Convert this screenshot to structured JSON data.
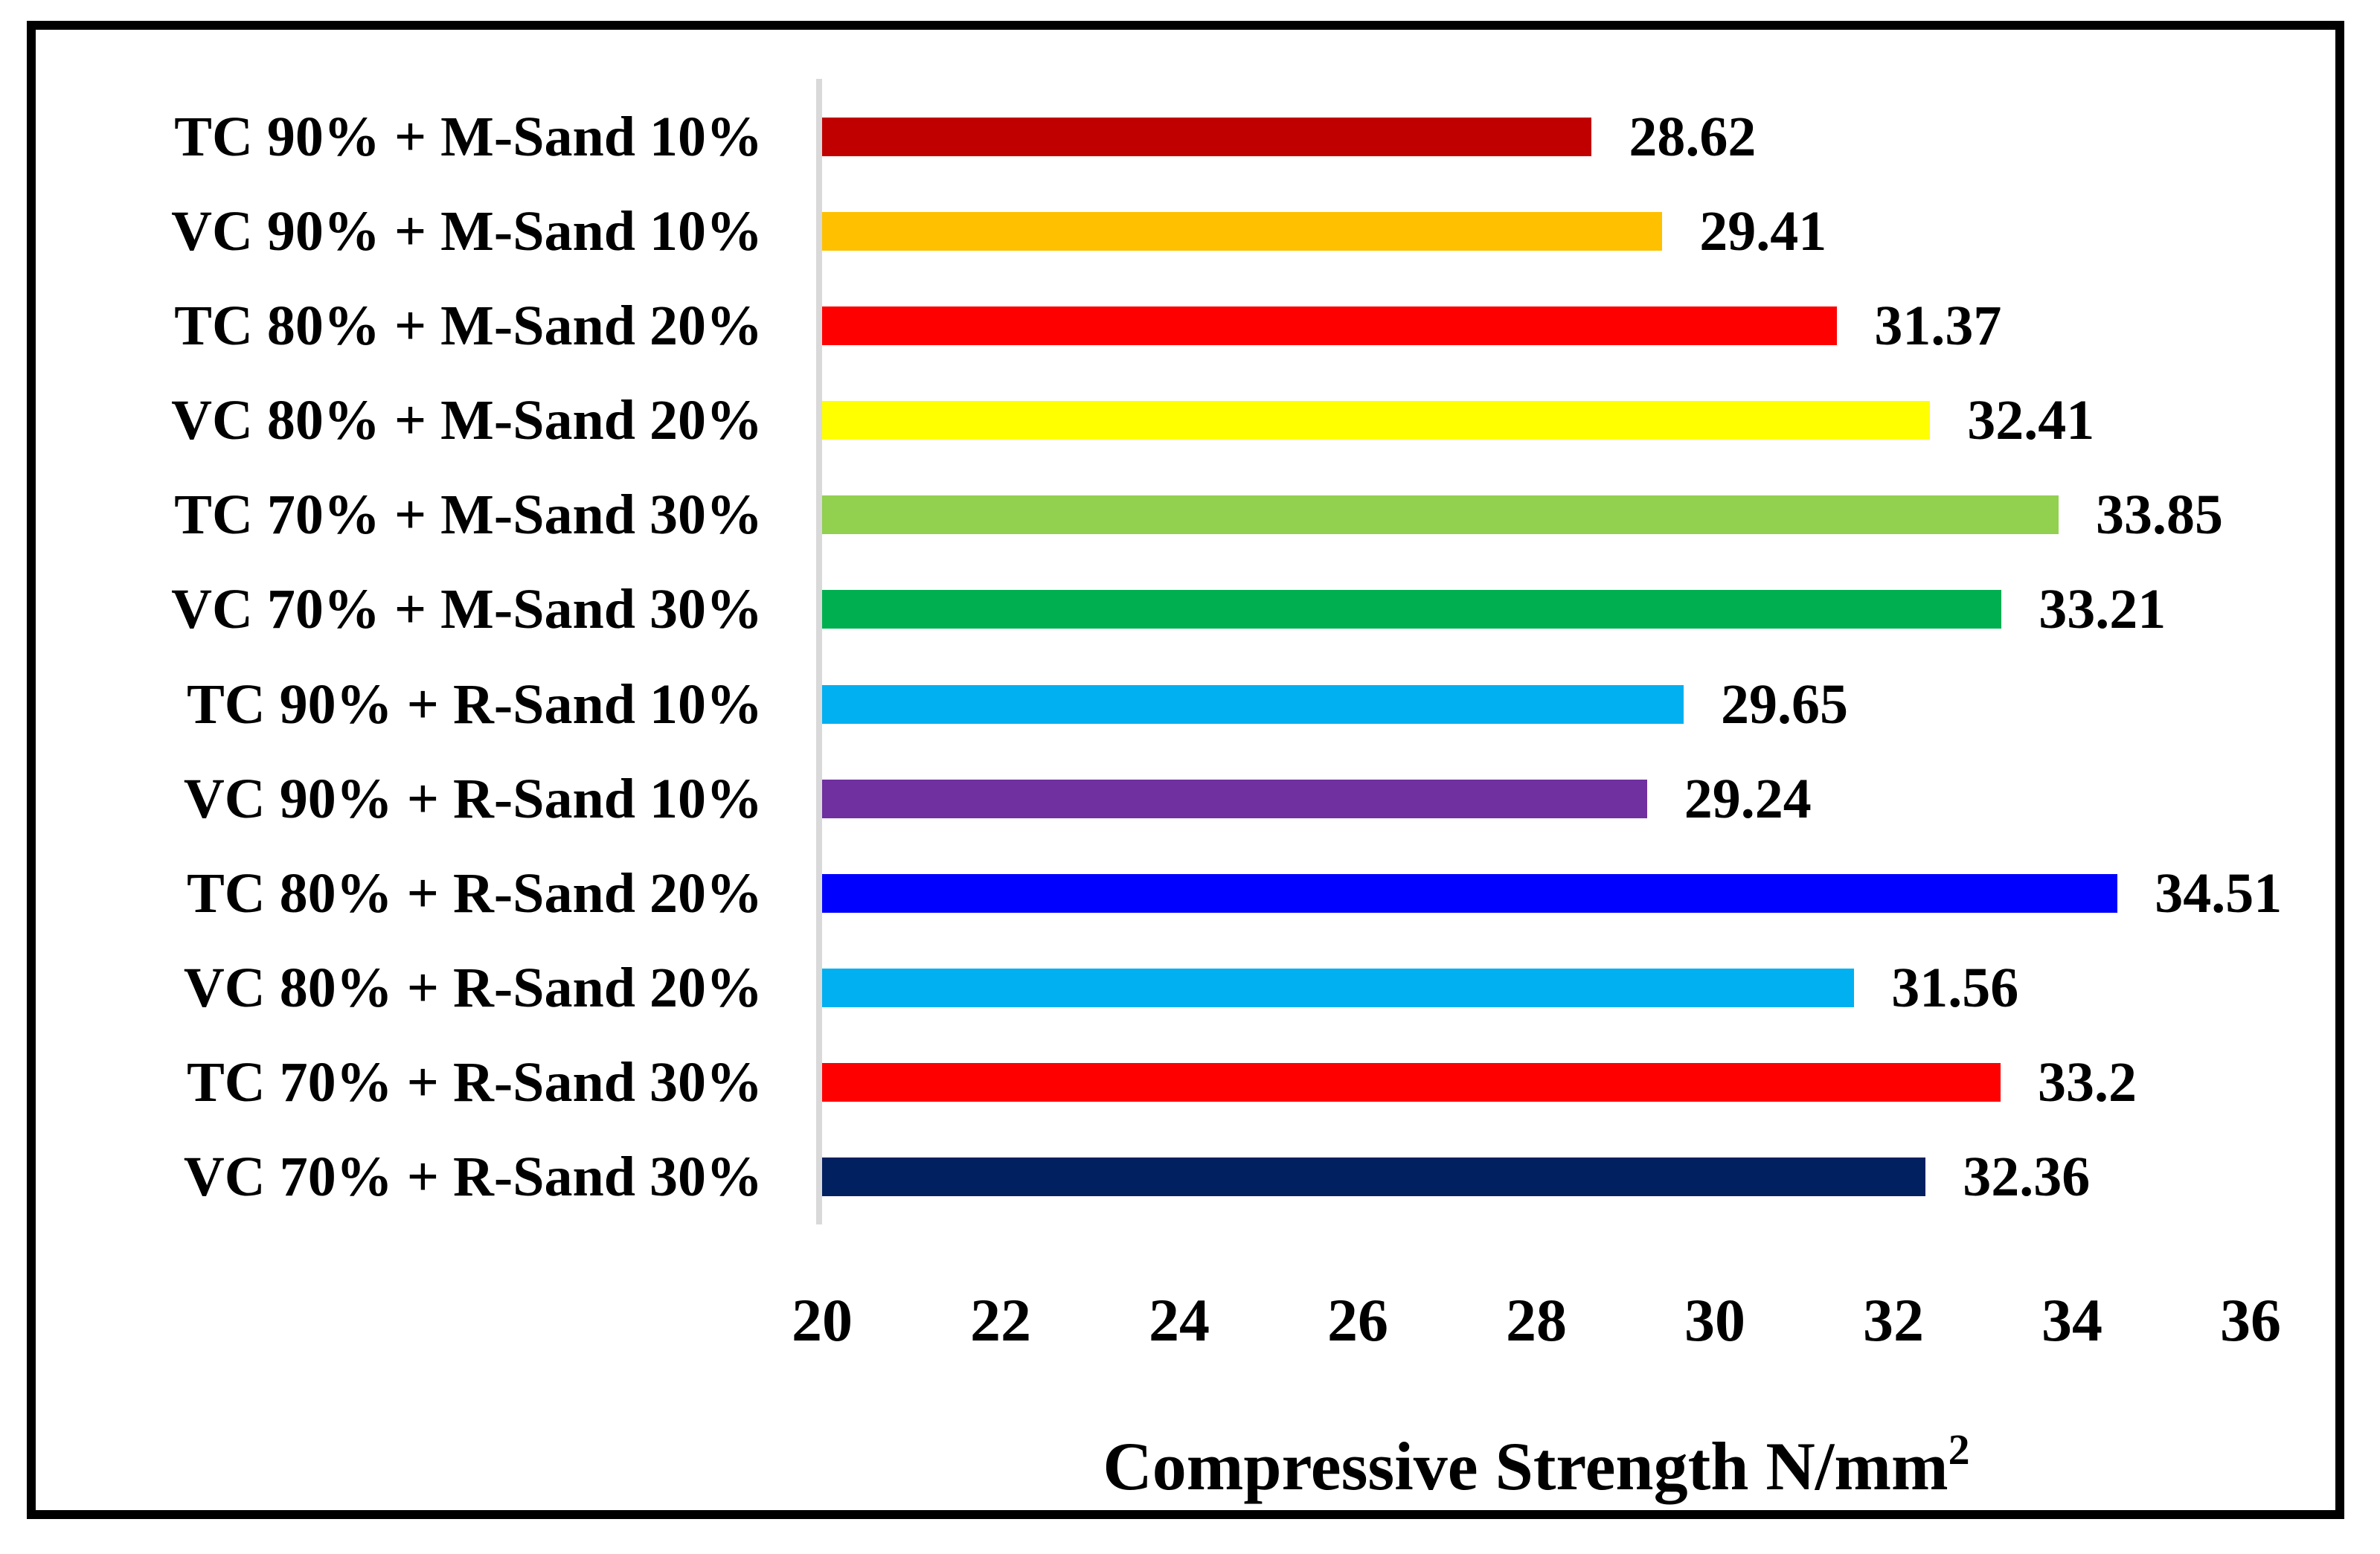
{
  "chart_data": {
    "type": "bar",
    "orientation": "horizontal",
    "title": "",
    "xlabel": "Compressive Strength N/mm²",
    "xlabel_main": "Compressive Strength N/mm",
    "xlabel_sup": "2",
    "ylabel": "",
    "categories": [
      "TC 90% + M-Sand 10%",
      "VC 90% + M-Sand 10%",
      "TC 80% + M-Sand 20%",
      "VC 80% + M-Sand 20%",
      "TC 70% + M-Sand 30%",
      "VC 70% + M-Sand 30%",
      "TC 90% + R-Sand 10%",
      "VC 90% + R-Sand 10%",
      "TC 80% + R-Sand 20%",
      "VC 80% + R-Sand 20%",
      "TC 70% + R-Sand 30%",
      "VC 70% + R-Sand 30%"
    ],
    "values": [
      28.62,
      29.41,
      31.37,
      32.41,
      33.85,
      33.21,
      29.65,
      29.24,
      34.51,
      31.56,
      33.2,
      32.36
    ],
    "value_labels": [
      "28.62",
      "29.41",
      "31.37",
      "32.41",
      "33.85",
      "33.21",
      "29.65",
      "29.24",
      "34.51",
      "31.56",
      "33.2",
      "32.36"
    ],
    "bar_colors": [
      "#C00000",
      "#FFC000",
      "#FF0000",
      "#FFFF00",
      "#92D050",
      "#00B050",
      "#00B0F0",
      "#7030A0",
      "#0000FF",
      "#00B0F0",
      "#FF0000",
      "#002060"
    ],
    "x_ticks": [
      "20",
      "22",
      "24",
      "26",
      "28",
      "30",
      "32",
      "34",
      "36"
    ],
    "xlim": [
      20,
      36
    ],
    "grid": false,
    "legend": false,
    "axis_line_color": "#D9D9D9",
    "frame_color": "#000000"
  }
}
